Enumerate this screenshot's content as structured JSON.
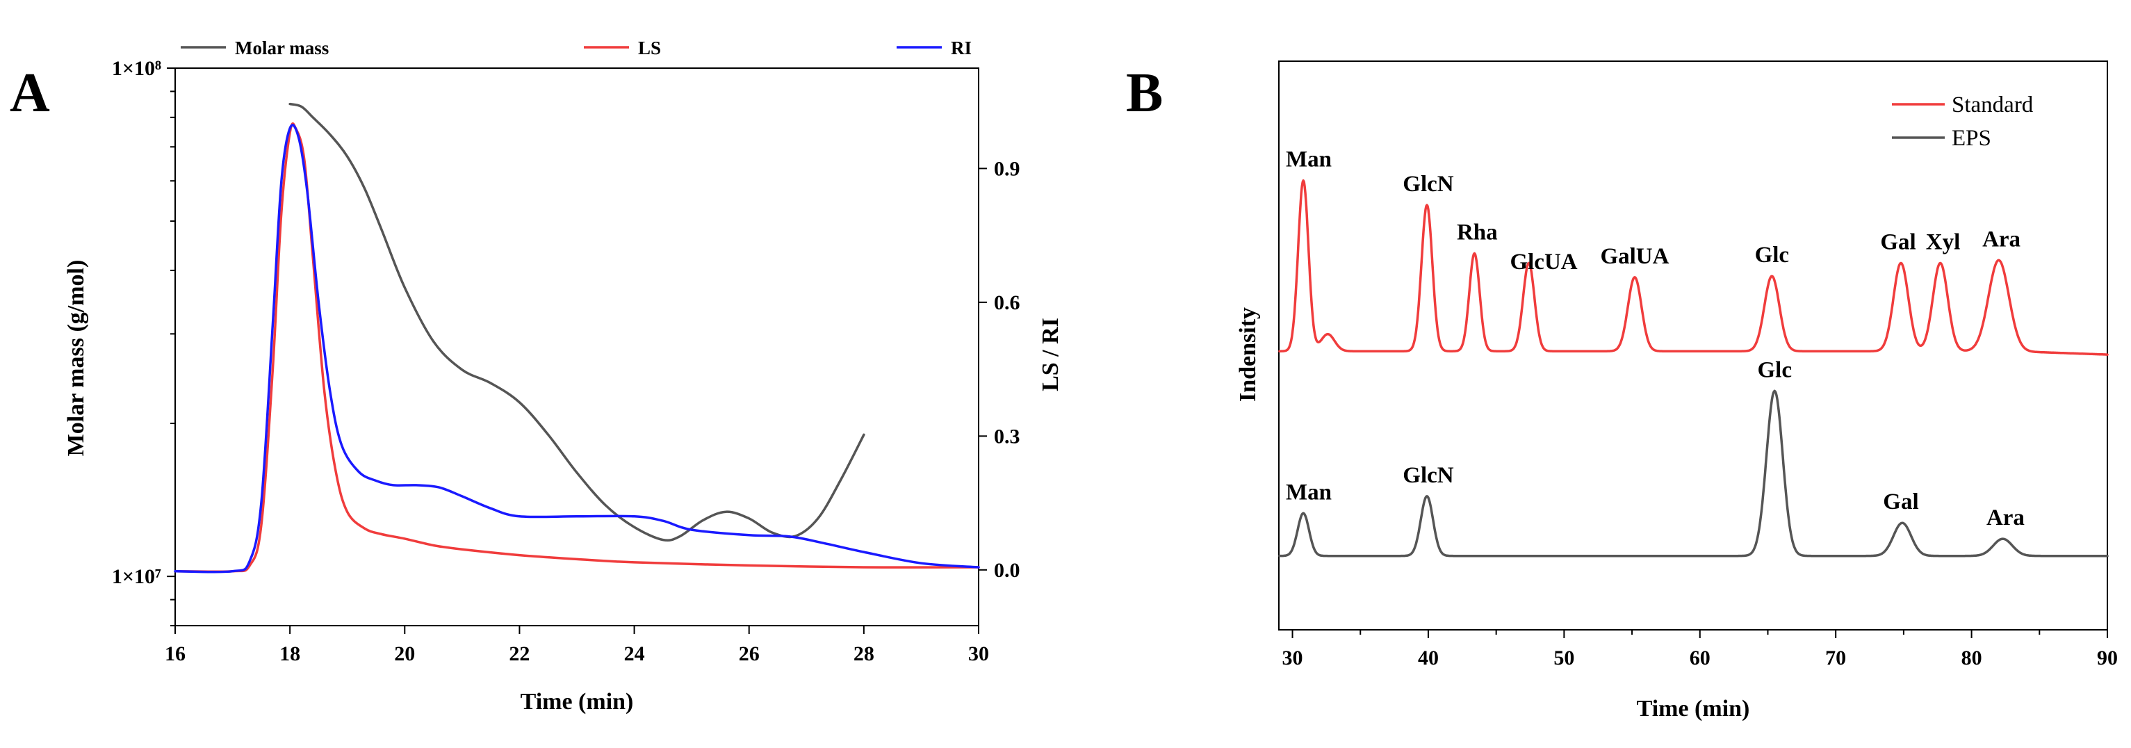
{
  "chart_data": [
    {
      "panel": "A",
      "type": "line",
      "title": "",
      "xlabel": "Time (min)",
      "ylabel_left": "Molar mass (g/mol)",
      "ylabel_right": "LS / RI",
      "xlim": [
        16,
        30
      ],
      "x_ticks": [
        16,
        18,
        20,
        22,
        24,
        26,
        28,
        30
      ],
      "y_left_scale": "log",
      "y_left_lim": [
        8000000,
        100000000
      ],
      "y_left_ticks": [
        {
          "value": 10000000,
          "label": "1×10⁷"
        },
        {
          "value": 100000000,
          "label": "1×10⁸"
        }
      ],
      "y_right_lim": [
        -0.125,
        1.125
      ],
      "y_right_ticks": [
        "0.0",
        "0.3",
        "0.6",
        "0.9"
      ],
      "grid": false,
      "legend": [
        "Molar mass",
        "LS",
        "RI"
      ],
      "legend_position": "top",
      "series": [
        {
          "name": "Molar mass",
          "axis": "left",
          "color": "#555555",
          "x": [
            18.0,
            18.2,
            18.4,
            18.7,
            19.0,
            19.3,
            19.6,
            20.0,
            20.5,
            21.0,
            21.5,
            22.0,
            22.5,
            23.0,
            23.5,
            24.0,
            24.5,
            24.8,
            25.2,
            25.6,
            26.0,
            26.4,
            26.8,
            27.2,
            27.6,
            28.0
          ],
          "y": [
            85000000,
            84000000,
            80000000,
            74000000,
            67000000,
            58000000,
            48000000,
            37000000,
            29000000,
            25500000,
            24000000,
            22000000,
            19000000,
            16000000,
            13800000,
            12500000,
            11800000,
            12000000,
            12900000,
            13400000,
            13000000,
            12200000,
            12000000,
            13000000,
            15500000,
            19000000
          ]
        },
        {
          "name": "LS",
          "axis": "right",
          "color": "#f03c3c",
          "x": [
            16.0,
            17.0,
            17.3,
            17.5,
            17.7,
            17.85,
            18.0,
            18.1,
            18.25,
            18.4,
            18.6,
            18.8,
            19.0,
            19.3,
            19.6,
            20.0,
            20.5,
            21.0,
            22.0,
            23.0,
            24.0,
            26.0,
            28.0,
            30.0
          ],
          "y": [
            -0.003,
            -0.003,
            0.01,
            0.1,
            0.45,
            0.8,
            0.98,
            0.99,
            0.92,
            0.7,
            0.4,
            0.22,
            0.13,
            0.093,
            0.08,
            0.07,
            0.055,
            0.046,
            0.033,
            0.024,
            0.017,
            0.01,
            0.006,
            0.006
          ]
        },
        {
          "name": "RI",
          "axis": "right",
          "color": "#1a1aff",
          "x": [
            16.0,
            17.0,
            17.3,
            17.5,
            17.7,
            17.85,
            18.0,
            18.15,
            18.3,
            18.5,
            18.7,
            18.9,
            19.2,
            19.5,
            19.8,
            20.2,
            20.6,
            21.0,
            21.5,
            22.0,
            23.0,
            24.0,
            24.5,
            25.0,
            26.0,
            26.7,
            27.3,
            28.0,
            29.0,
            30.0
          ],
          "y": [
            -0.003,
            -0.003,
            0.02,
            0.15,
            0.55,
            0.87,
            0.99,
            0.97,
            0.85,
            0.6,
            0.4,
            0.28,
            0.22,
            0.2,
            0.19,
            0.19,
            0.185,
            0.165,
            0.138,
            0.12,
            0.12,
            0.12,
            0.11,
            0.09,
            0.078,
            0.075,
            0.06,
            0.04,
            0.015,
            0.006
          ]
        }
      ]
    },
    {
      "panel": "B",
      "type": "line",
      "title": "",
      "xlabel": "Time (min)",
      "ylabel": "Indensity",
      "xlim": [
        29,
        90
      ],
      "x_ticks": [
        30,
        40,
        50,
        60,
        70,
        80,
        90
      ],
      "ylim": [
        0,
        1
      ],
      "y_ticks_visible": false,
      "grid": false,
      "legend": [
        "Standard",
        "EPS"
      ],
      "legend_position": "top-right",
      "series": [
        {
          "name": "Standard",
          "color": "#f03c3c",
          "baseline": 0.49,
          "peaks": [
            {
              "x": 30.8,
              "h": 0.3,
              "w": 0.38
            },
            {
              "x": 32.6,
              "h": 0.03,
              "w": 0.5
            },
            {
              "x": 39.9,
              "h": 0.257,
              "w": 0.4
            },
            {
              "x": 43.4,
              "h": 0.172,
              "w": 0.38
            },
            {
              "x": 47.4,
              "h": 0.155,
              "w": 0.42
            },
            {
              "x": 55.2,
              "h": 0.13,
              "w": 0.5
            },
            {
              "x": 65.3,
              "h": 0.132,
              "w": 0.55
            },
            {
              "x": 74.8,
              "h": 0.155,
              "w": 0.55
            },
            {
              "x": 77.7,
              "h": 0.155,
              "w": 0.55
            },
            {
              "x": 82.0,
              "h": 0.16,
              "w": 0.75
            }
          ]
        },
        {
          "name": "EPS",
          "color": "#555555",
          "baseline": 0.13,
          "peaks": [
            {
              "x": 30.8,
              "h": 0.075,
              "w": 0.42
            },
            {
              "x": 39.9,
              "h": 0.105,
              "w": 0.45
            },
            {
              "x": 65.5,
              "h": 0.29,
              "w": 0.6
            },
            {
              "x": 74.9,
              "h": 0.058,
              "w": 0.65
            },
            {
              "x": 82.3,
              "h": 0.03,
              "w": 0.7
            }
          ]
        }
      ],
      "annotations": [
        {
          "text": "Man",
          "x": 31.2,
          "series": "Standard"
        },
        {
          "text": "GlcN",
          "x": 40.0,
          "series": "Standard"
        },
        {
          "text": "Rha",
          "x": 43.6,
          "series": "Standard"
        },
        {
          "text": "GlcUA",
          "x": 48.5,
          "series": "Standard"
        },
        {
          "text": "GalUA",
          "x": 55.2,
          "series": "Standard"
        },
        {
          "text": "Glc",
          "x": 65.3,
          "series": "Standard"
        },
        {
          "text": "Gal",
          "x": 74.6,
          "series": "Standard"
        },
        {
          "text": "Xyl",
          "x": 77.9,
          "series": "Standard"
        },
        {
          "text": "Ara",
          "x": 82.2,
          "series": "Standard"
        },
        {
          "text": "Man",
          "x": 31.2,
          "series": "EPS"
        },
        {
          "text": "GlcN",
          "x": 40.0,
          "series": "EPS"
        },
        {
          "text": "Glc",
          "x": 65.5,
          "series": "EPS"
        },
        {
          "text": "Gal",
          "x": 74.8,
          "series": "EPS"
        },
        {
          "text": "Ara",
          "x": 82.5,
          "series": "EPS"
        }
      ]
    }
  ]
}
